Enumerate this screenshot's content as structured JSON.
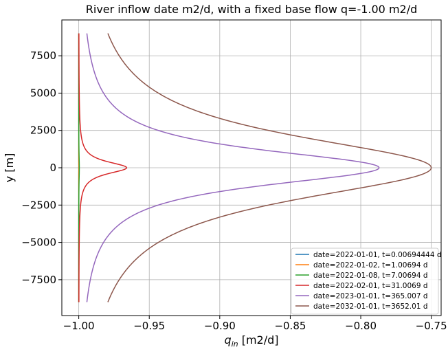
{
  "chart_data": {
    "type": "line",
    "title": "River inflow date m2/d, with a fixed base flow q=-1.00 m2/d",
    "xlabel_base": "q",
    "xlabel_sub": "in",
    "xlabel_unit": " [m2/d]",
    "ylabel": "y [m]",
    "xlim": [
      -1.012,
      -0.743
    ],
    "ylim": [
      -9900,
      9900
    ],
    "xticks": [
      -1.0,
      -0.95,
      -0.9,
      -0.85,
      -0.8,
      -0.75
    ],
    "xtick_labels": [
      "−1.00",
      "−0.95",
      "−0.90",
      "−0.85",
      "−0.80",
      "−0.75"
    ],
    "yticks": [
      7500,
      5000,
      2500,
      0,
      -2500,
      -5000,
      -7500
    ],
    "ytick_labels": [
      "7500",
      "5000",
      "2500",
      "0",
      "−2500",
      "−5000",
      "−7500"
    ],
    "grid": true,
    "legend_position": "bottom-right",
    "y_range": [
      -9000,
      9000
    ],
    "base_flow": -1.0,
    "series": [
      {
        "name": "date=2022-01-01, t=0.00694444 d",
        "color": "#1f77b4",
        "peak": 0.0,
        "scale": 8
      },
      {
        "name": "date=2022-01-02, t=1.00694 d",
        "color": "#ff7f0e",
        "peak": 0.0001,
        "scale": 200
      },
      {
        "name": "date=2022-01-08, t=7.00694 d",
        "color": "#2ca02c",
        "peak": 0.0004,
        "scale": 1000
      },
      {
        "name": "date=2022-02-01, t=31.0069 d",
        "color": "#d62728",
        "peak": 0.034,
        "scale": 500
      },
      {
        "name": "date=2023-01-01, t=365.007 d",
        "color": "#9467bd",
        "peak": 0.213,
        "scale": 1500
      },
      {
        "name": "date=2032-01-01, t=3652.01 d",
        "color": "#8c564b",
        "peak": 0.25,
        "scale": 2700
      }
    ]
  }
}
